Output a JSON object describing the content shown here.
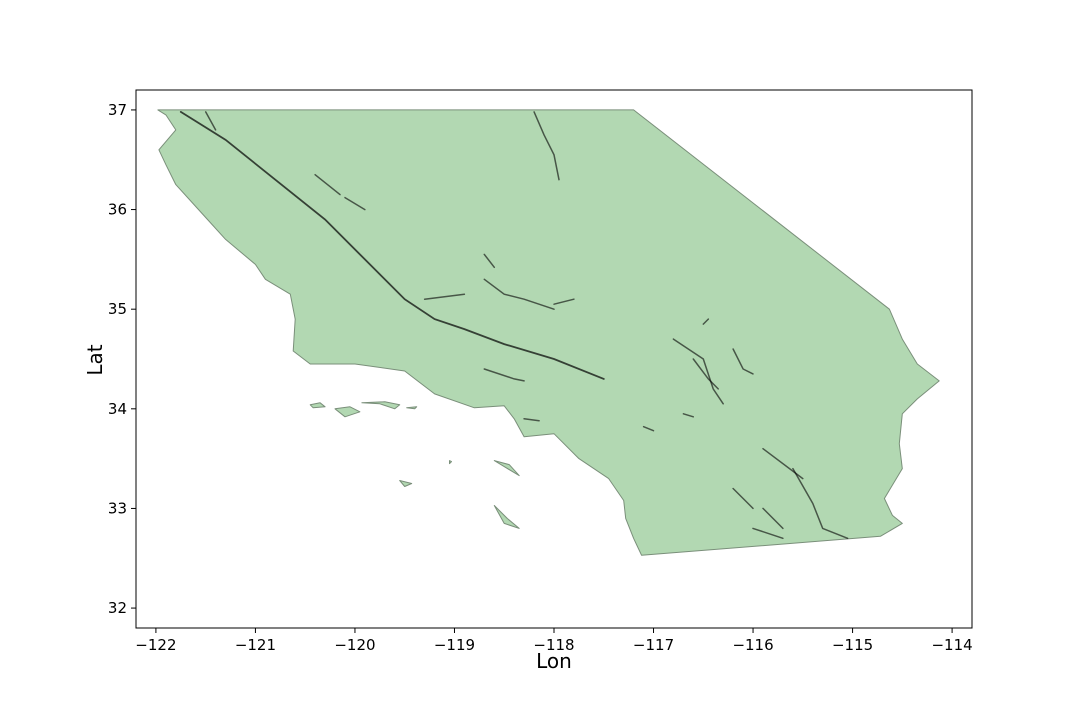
{
  "map": {
    "xlabel": "Lon",
    "ylabel": "Lat",
    "xlim": [
      -122.2,
      -113.8
    ],
    "ylim": [
      31.8,
      37.2
    ],
    "x_ticks": [
      -122,
      -121,
      -120,
      -119,
      -118,
      -117,
      -116,
      -115,
      -114
    ],
    "y_ticks": [
      32,
      33,
      34,
      35,
      36,
      37
    ],
    "land_color": "#b2d8b2",
    "fault_color": "#000000",
    "mainland": [
      [
        -121.98,
        37.0
      ],
      [
        -117.2,
        37.0
      ],
      [
        -114.63,
        35.0
      ],
      [
        -114.5,
        34.7
      ],
      [
        -114.35,
        34.45
      ],
      [
        -114.13,
        34.28
      ],
      [
        -114.35,
        34.1
      ],
      [
        -114.5,
        33.95
      ],
      [
        -114.53,
        33.65
      ],
      [
        -114.5,
        33.4
      ],
      [
        -114.68,
        33.1
      ],
      [
        -114.6,
        32.93
      ],
      [
        -114.5,
        32.85
      ],
      [
        -114.72,
        32.72
      ],
      [
        -117.12,
        32.53
      ],
      [
        -117.2,
        32.7
      ],
      [
        -117.28,
        32.9
      ],
      [
        -117.3,
        33.08
      ],
      [
        -117.45,
        33.3
      ],
      [
        -117.75,
        33.5
      ],
      [
        -118.0,
        33.75
      ],
      [
        -118.3,
        33.72
      ],
      [
        -118.4,
        33.9
      ],
      [
        -118.5,
        34.03
      ],
      [
        -118.8,
        34.01
      ],
      [
        -119.2,
        34.15
      ],
      [
        -119.5,
        34.38
      ],
      [
        -120.0,
        34.45
      ],
      [
        -120.45,
        34.45
      ],
      [
        -120.62,
        34.58
      ],
      [
        -120.6,
        34.9
      ],
      [
        -120.65,
        35.15
      ],
      [
        -120.9,
        35.3
      ],
      [
        -121.0,
        35.45
      ],
      [
        -121.3,
        35.7
      ],
      [
        -121.5,
        35.92
      ],
      [
        -121.8,
        36.25
      ],
      [
        -121.9,
        36.45
      ],
      [
        -121.97,
        36.6
      ],
      [
        -121.8,
        36.8
      ],
      [
        -121.9,
        36.95
      ]
    ],
    "islands": [
      [
        [
          -120.45,
          34.04
        ],
        [
          -120.35,
          34.06
        ],
        [
          -120.3,
          34.02
        ],
        [
          -120.42,
          34.01
        ]
      ],
      [
        [
          -120.2,
          34.0
        ],
        [
          -120.05,
          34.02
        ],
        [
          -119.95,
          33.97
        ],
        [
          -120.1,
          33.92
        ]
      ],
      [
        [
          -119.93,
          34.06
        ],
        [
          -119.75,
          34.05
        ],
        [
          -119.6,
          34.0
        ],
        [
          -119.55,
          34.04
        ],
        [
          -119.7,
          34.07
        ]
      ],
      [
        [
          -119.48,
          34.01
        ],
        [
          -119.38,
          34.02
        ],
        [
          -119.4,
          34.0
        ]
      ],
      [
        [
          -118.6,
          33.48
        ],
        [
          -118.45,
          33.44
        ],
        [
          -118.35,
          33.33
        ],
        [
          -118.5,
          33.42
        ]
      ],
      [
        [
          -119.05,
          33.48
        ],
        [
          -119.03,
          33.47
        ],
        [
          -119.05,
          33.45
        ]
      ],
      [
        [
          -119.55,
          33.28
        ],
        [
          -119.43,
          33.25
        ],
        [
          -119.5,
          33.22
        ]
      ],
      [
        [
          -118.6,
          33.03
        ],
        [
          -118.5,
          32.85
        ],
        [
          -118.35,
          32.8
        ],
        [
          -118.47,
          32.9
        ]
      ]
    ],
    "faults": [
      [
        [
          -121.75,
          36.98
        ],
        [
          -121.3,
          36.7
        ],
        [
          -120.8,
          36.3
        ],
        [
          -120.3,
          35.9
        ],
        [
          -119.9,
          35.5
        ],
        [
          -119.5,
          35.1
        ],
        [
          -119.2,
          34.9
        ],
        [
          -118.9,
          34.8
        ],
        [
          -118.5,
          34.65
        ],
        [
          -118.0,
          34.5
        ],
        [
          -117.5,
          34.3
        ]
      ],
      [
        [
          -121.5,
          36.98
        ],
        [
          -121.4,
          36.8
        ]
      ],
      [
        [
          -120.4,
          36.35
        ],
        [
          -120.15,
          36.15
        ]
      ],
      [
        [
          -120.1,
          36.12
        ],
        [
          -119.9,
          36.0
        ]
      ],
      [
        [
          -118.2,
          36.98
        ],
        [
          -118.1,
          36.75
        ],
        [
          -118.0,
          36.55
        ],
        [
          -117.95,
          36.3
        ]
      ],
      [
        [
          -118.7,
          35.55
        ],
        [
          -118.6,
          35.42
        ]
      ],
      [
        [
          -118.7,
          35.3
        ],
        [
          -118.5,
          35.15
        ],
        [
          -118.3,
          35.1
        ],
        [
          -118.0,
          35.0
        ]
      ],
      [
        [
          -119.3,
          35.1
        ],
        [
          -118.9,
          35.15
        ]
      ],
      [
        [
          -118.0,
          35.05
        ],
        [
          -117.8,
          35.1
        ]
      ],
      [
        [
          -118.7,
          34.4
        ],
        [
          -118.4,
          34.3
        ],
        [
          -118.3,
          34.28
        ]
      ],
      [
        [
          -118.3,
          33.9
        ],
        [
          -118.15,
          33.88
        ]
      ],
      [
        [
          -116.5,
          34.85
        ],
        [
          -116.45,
          34.9
        ]
      ],
      [
        [
          -116.8,
          34.7
        ],
        [
          -116.5,
          34.5
        ],
        [
          -116.4,
          34.2
        ],
        [
          -116.3,
          34.05
        ]
      ],
      [
        [
          -116.2,
          34.6
        ],
        [
          -116.1,
          34.4
        ],
        [
          -116.0,
          34.35
        ]
      ],
      [
        [
          -116.6,
          34.5
        ],
        [
          -116.45,
          34.3
        ],
        [
          -116.35,
          34.2
        ]
      ],
      [
        [
          -115.9,
          33.6
        ],
        [
          -115.5,
          33.3
        ]
      ],
      [
        [
          -115.6,
          33.4
        ],
        [
          -115.4,
          33.05
        ],
        [
          -115.3,
          32.8
        ],
        [
          -115.05,
          32.7
        ]
      ],
      [
        [
          -116.2,
          33.2
        ],
        [
          -116.0,
          33.0
        ]
      ],
      [
        [
          -115.9,
          33.0
        ],
        [
          -115.7,
          32.8
        ]
      ],
      [
        [
          -116.0,
          32.8
        ],
        [
          -115.7,
          32.7
        ]
      ],
      [
        [
          -117.1,
          33.82
        ],
        [
          -117.0,
          33.78
        ]
      ],
      [
        [
          -116.7,
          33.95
        ],
        [
          -116.6,
          33.92
        ]
      ]
    ]
  }
}
